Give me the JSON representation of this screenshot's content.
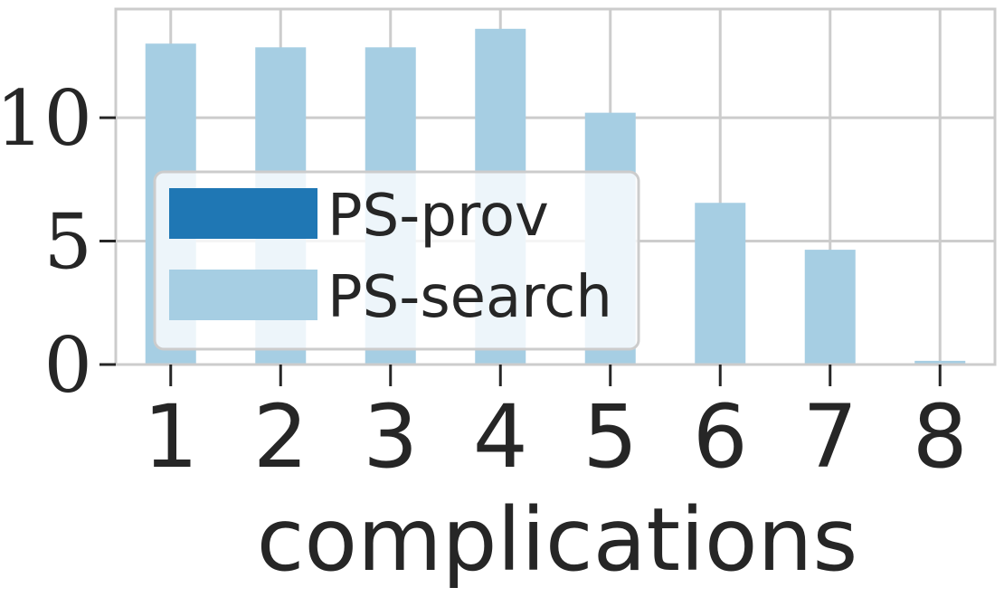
{
  "chart_data": {
    "type": "bar",
    "categories": [
      "1",
      "2",
      "3",
      "4",
      "5",
      "6",
      "7",
      "8"
    ],
    "series": [
      {
        "name": "PS-prov",
        "values": [
          0,
          0,
          0,
          0,
          0,
          0,
          0,
          0
        ],
        "color": "#1f77b4"
      },
      {
        "name": "PS-search",
        "values": [
          13.0,
          12.85,
          12.85,
          13.6,
          10.2,
          6.55,
          4.65,
          0.15
        ],
        "color": "#a6cee3"
      }
    ],
    "xlabel": "complications",
    "ylabel": "",
    "ylim": [
      0,
      14.4
    ],
    "yticks": [
      0,
      5,
      10
    ],
    "ytick_labels": [
      "0",
      "5",
      "10"
    ],
    "grid": true,
    "legend_position": "center-left"
  }
}
